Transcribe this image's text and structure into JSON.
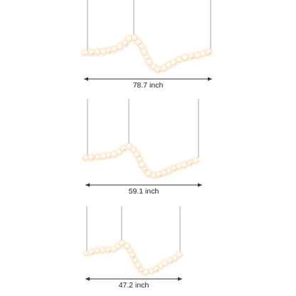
{
  "colors": {
    "background": "#ffffff",
    "wire": "#8f8f8f",
    "bead_fill": "#fff6ea",
    "bead_edge": "#f2dcc0",
    "bead_glow": "#fde3c3",
    "bead_shadow": "#c9a57a",
    "dimension_line": "#333333",
    "label_text": "#222222"
  },
  "icons": {
    "arrow": "double-headed-arrow-icon",
    "bead": "glowing-bead-icon"
  },
  "fixtures": [
    {
      "name": "large-fixture",
      "label": "78.7 inch"
    },
    {
      "name": "medium-fixture",
      "label": "59.1 inch"
    },
    {
      "name": "small-fixture",
      "label": "47.2 inch"
    }
  ]
}
